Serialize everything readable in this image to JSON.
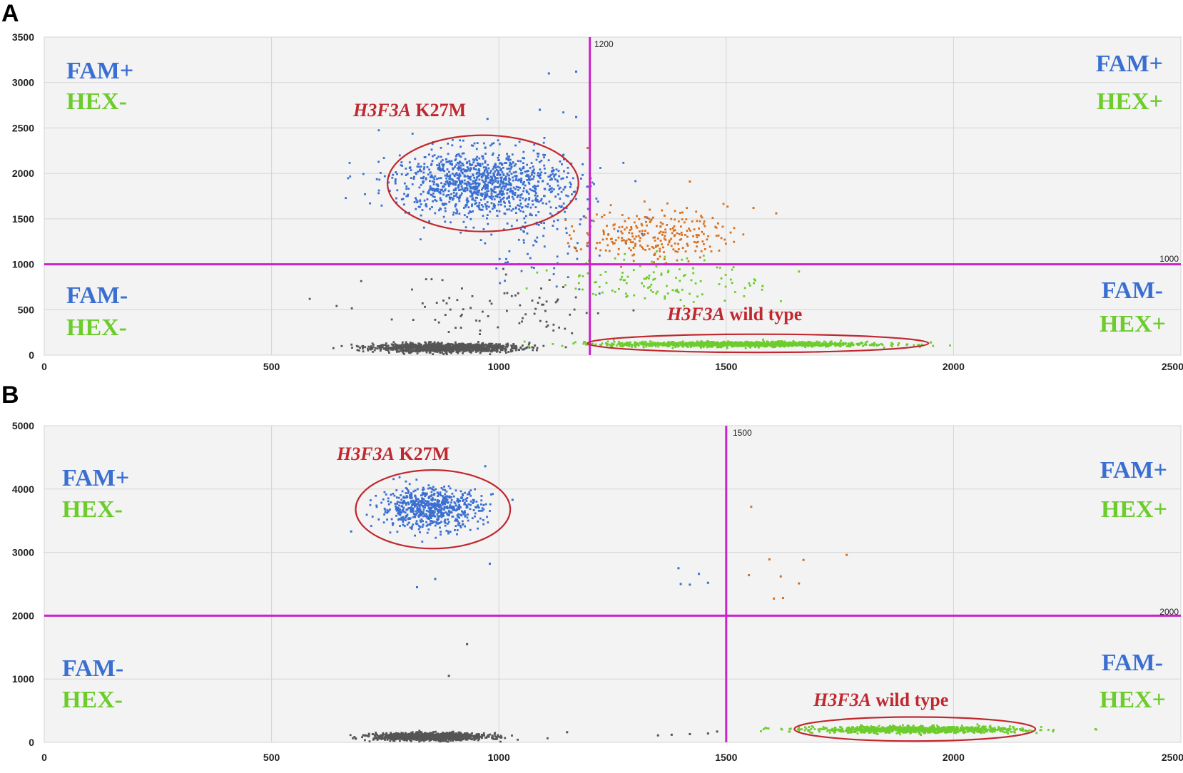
{
  "panels": [
    "A",
    "B"
  ],
  "colors": {
    "fam": "#3a6fd1",
    "hex": "#6ccc2c",
    "double": "#d7701e",
    "neg": "#555555",
    "threshold": "#cc22cc",
    "annotation": "#c0282f",
    "plot_bg": "#f3f3f3",
    "grid": "#d4d4d4"
  },
  "quadrant_labels": {
    "fam_pos": "FAM+",
    "fam_neg": "FAM-",
    "hex_pos": "HEX+",
    "hex_neg": "HEX-"
  },
  "annotations": {
    "mutant_gene": "H3F3A",
    "mutant_suffix": " K27M",
    "wt_gene": "H3F3A",
    "wt_suffix": " wild type"
  },
  "chart_data": [
    {
      "panel": "A",
      "type": "scatter",
      "xlim": [
        0,
        2500
      ],
      "ylim": [
        0,
        3500
      ],
      "xticks": [
        0,
        500,
        1000,
        1500,
        2000,
        2500
      ],
      "yticks": [
        0,
        500,
        1000,
        1500,
        2000,
        2500,
        3000,
        3500
      ],
      "x_threshold": 1200,
      "y_threshold": 1000,
      "grid": true,
      "clusters": [
        {
          "label": "FAM-/HEX-",
          "color": "neg",
          "n": 1300,
          "cx": 880,
          "cy": 80,
          "sx": 75,
          "sy": 22
        },
        {
          "label": "FAM-/HEX-",
          "color": "neg",
          "n": 90,
          "cx": 1000,
          "cy": 450,
          "sx": 140,
          "sy": 220
        },
        {
          "label": "FAM+/HEX- (H3F3A K27M)",
          "color": "fam",
          "n": 1100,
          "cx": 960,
          "cy": 1900,
          "sx": 95,
          "sy": 180
        },
        {
          "label": "FAM+/HEX-",
          "color": "fam",
          "n": 120,
          "cx": 1080,
          "cy": 1400,
          "sx": 90,
          "sy": 320
        },
        {
          "label": "FAM+/HEX+",
          "color": "double",
          "n": 260,
          "cx": 1340,
          "cy": 1330,
          "sx": 80,
          "sy": 140
        },
        {
          "label": "FAM-/HEX+ scatter",
          "color": "hex",
          "n": 120,
          "cx": 1360,
          "cy": 820,
          "sx": 110,
          "sy": 130
        },
        {
          "label": "FAM-/HEX+ (H3F3A wild type)",
          "color": "hex",
          "n": 1200,
          "cx": 1530,
          "cy": 120,
          "sx": 140,
          "sy": 14
        }
      ],
      "outliers": [
        {
          "x": 1110,
          "y": 3100,
          "color": "fam"
        },
        {
          "x": 1170,
          "y": 3120,
          "color": "fam"
        },
        {
          "x": 975,
          "y": 2600,
          "color": "fam"
        },
        {
          "x": 1090,
          "y": 2700,
          "color": "fam"
        },
        {
          "x": 1170,
          "y": 2620,
          "color": "fam"
        },
        {
          "x": 1195,
          "y": 2280,
          "color": "double"
        },
        {
          "x": 1420,
          "y": 1910,
          "color": "double"
        },
        {
          "x": 1560,
          "y": 1620,
          "color": "double"
        },
        {
          "x": 1610,
          "y": 1560,
          "color": "double"
        },
        {
          "x": 1660,
          "y": 920,
          "color": "hex"
        },
        {
          "x": 1580,
          "y": 760,
          "color": "hex"
        },
        {
          "x": 1950,
          "y": 140,
          "color": "hex"
        }
      ],
      "ellipses": [
        {
          "cx": 965,
          "cy": 1890,
          "rx": 210,
          "ry": 530
        },
        {
          "cx": 1570,
          "cy": 130,
          "rx": 375,
          "ry": 100
        }
      ]
    },
    {
      "panel": "B",
      "type": "scatter",
      "xlim": [
        0,
        2500
      ],
      "ylim": [
        0,
        5000
      ],
      "xticks": [
        0,
        500,
        1000,
        1500,
        2000,
        2500
      ],
      "yticks": [
        0,
        1000,
        2000,
        3000,
        4000,
        5000
      ],
      "x_threshold": 1500,
      "y_threshold": 2000,
      "grid": true,
      "clusters": [
        {
          "label": "FAM-/HEX-",
          "color": "neg",
          "n": 1200,
          "cx": 850,
          "cy": 90,
          "sx": 60,
          "sy": 28
        },
        {
          "label": "FAM+/HEX- (H3F3A K27M)",
          "color": "fam",
          "n": 700,
          "cx": 850,
          "cy": 3700,
          "sx": 55,
          "sy": 160
        },
        {
          "label": "FAM-/HEX+ (H3F3A wild type)",
          "color": "hex",
          "n": 1100,
          "cx": 1920,
          "cy": 200,
          "sx": 110,
          "sy": 25
        }
      ],
      "outliers": [
        {
          "x": 675,
          "y": 3330,
          "color": "fam"
        },
        {
          "x": 970,
          "y": 4360,
          "color": "fam"
        },
        {
          "x": 1030,
          "y": 3830,
          "color": "fam"
        },
        {
          "x": 980,
          "y": 2820,
          "color": "fam"
        },
        {
          "x": 820,
          "y": 2450,
          "color": "fam"
        },
        {
          "x": 860,
          "y": 2580,
          "color": "fam"
        },
        {
          "x": 1395,
          "y": 2750,
          "color": "fam"
        },
        {
          "x": 1400,
          "y": 2500,
          "color": "fam"
        },
        {
          "x": 1420,
          "y": 2490,
          "color": "fam"
        },
        {
          "x": 1440,
          "y": 2660,
          "color": "fam"
        },
        {
          "x": 1460,
          "y": 2520,
          "color": "fam"
        },
        {
          "x": 1555,
          "y": 3720,
          "color": "double"
        },
        {
          "x": 1550,
          "y": 2640,
          "color": "double"
        },
        {
          "x": 1595,
          "y": 2890,
          "color": "double"
        },
        {
          "x": 1620,
          "y": 2620,
          "color": "double"
        },
        {
          "x": 1660,
          "y": 2510,
          "color": "double"
        },
        {
          "x": 1670,
          "y": 2880,
          "color": "double"
        },
        {
          "x": 1765,
          "y": 2960,
          "color": "double"
        },
        {
          "x": 1605,
          "y": 2270,
          "color": "double"
        },
        {
          "x": 1625,
          "y": 2280,
          "color": "double"
        },
        {
          "x": 930,
          "y": 1550,
          "color": "neg"
        },
        {
          "x": 890,
          "y": 1050,
          "color": "neg"
        },
        {
          "x": 1150,
          "y": 160,
          "color": "neg"
        },
        {
          "x": 1350,
          "y": 110,
          "color": "neg"
        },
        {
          "x": 1380,
          "y": 120,
          "color": "neg"
        },
        {
          "x": 1420,
          "y": 130,
          "color": "neg"
        },
        {
          "x": 1460,
          "y": 140,
          "color": "neg"
        },
        {
          "x": 1480,
          "y": 170,
          "color": "neg"
        }
      ],
      "ellipses": [
        {
          "cx": 855,
          "cy": 3680,
          "rx": 170,
          "ry": 620
        },
        {
          "cx": 1915,
          "cy": 210,
          "rx": 265,
          "ry": 190
        }
      ]
    }
  ]
}
